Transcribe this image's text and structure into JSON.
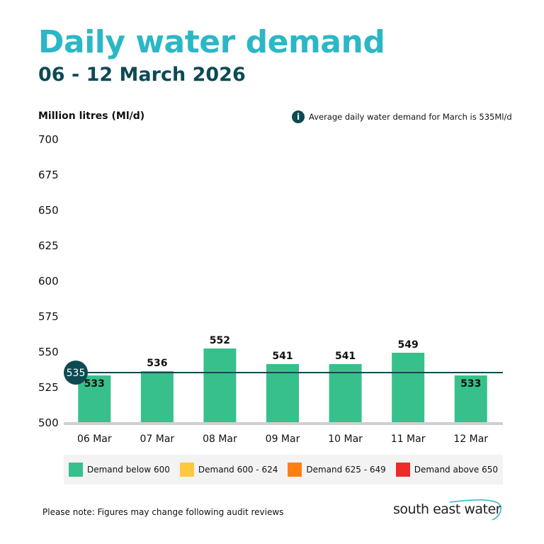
{
  "title": "Daily water demand",
  "subtitle": "06 - 12 March 2026",
  "note": "Average daily water demand for March is 535Ml/d",
  "footnote": "Please note: Figures may change following audit reviews",
  "logo_text": "south east water",
  "chart_data": {
    "type": "bar",
    "ylabel": "Million litres (Ml/d)",
    "ylim": [
      500,
      700
    ],
    "yticks": [
      500,
      525,
      550,
      575,
      600,
      625,
      650,
      675,
      700
    ],
    "categories": [
      "06 Mar",
      "07 Mar",
      "08 Mar",
      "09 Mar",
      "10 Mar",
      "11 Mar",
      "12 Mar"
    ],
    "values": [
      533,
      536,
      552,
      541,
      541,
      549,
      533
    ],
    "average": 535,
    "bar_color": "#37c08b",
    "average_line_color": "#0d4a52",
    "legend": [
      {
        "label": "Demand below 600",
        "color": "#37c08b"
      },
      {
        "label": "Demand 600 - 624",
        "color": "#ffc83d"
      },
      {
        "label": "Demand 625 - 649",
        "color": "#ff7f11"
      },
      {
        "label": "Demand above 650",
        "color": "#ee2a2a"
      }
    ],
    "legend_position": "bottom",
    "grid": false
  }
}
